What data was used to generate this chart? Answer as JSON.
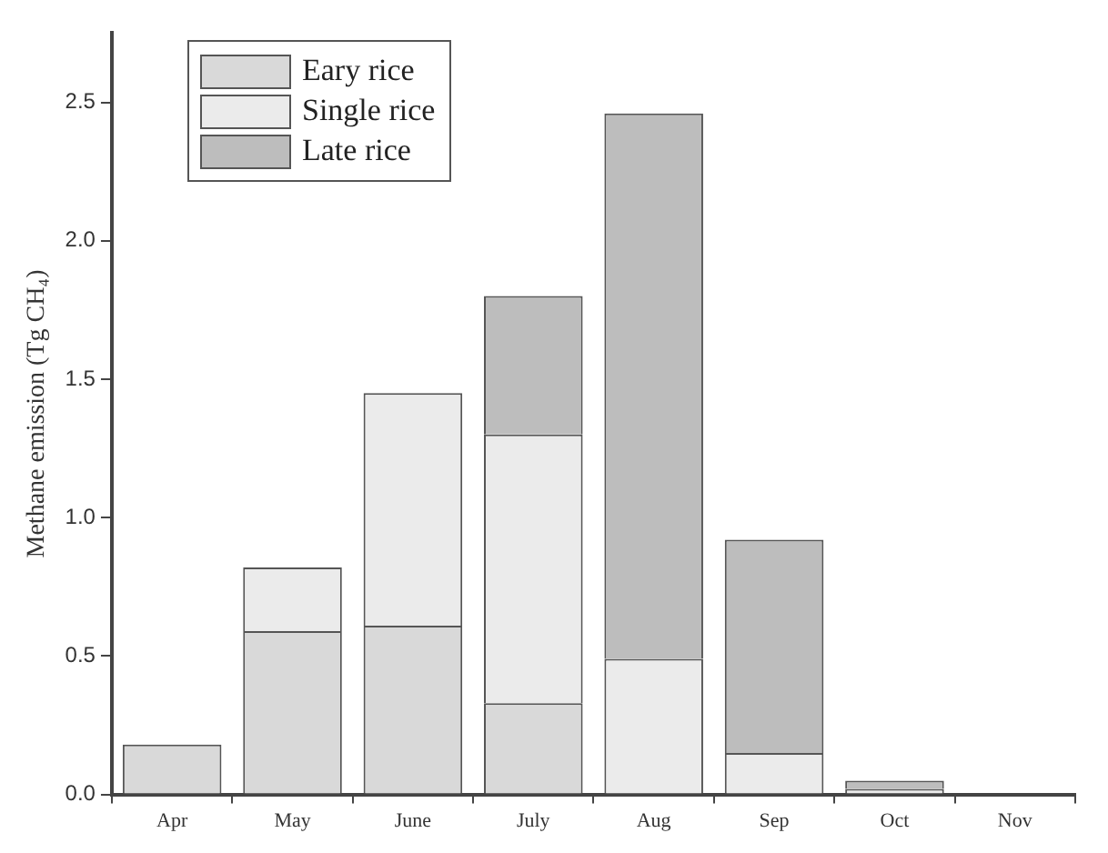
{
  "chart_data": {
    "type": "bar",
    "ylabel": "Methane emission (Tg CH₄)",
    "categories": [
      "Apr",
      "May",
      "June",
      "July",
      "Aug",
      "Sep",
      "Oct",
      "Nov"
    ],
    "stacked": true,
    "legend": "top left",
    "grid": false,
    "ylim": [
      0,
      2.75
    ],
    "yticks": [
      {
        "value": 0,
        "label": "0.0"
      },
      {
        "value": 0.5,
        "label": "0.5"
      },
      {
        "value": 1,
        "label": "1.0"
      },
      {
        "value": 1.5,
        "label": "1.5"
      },
      {
        "value": 2,
        "label": "2.0"
      },
      {
        "value": 2.5,
        "label": "2.5"
      }
    ],
    "series": [
      {
        "name": "Eary rice",
        "color": "#d9d9d9",
        "values": [
          0.18,
          0.59,
          0.61,
          0.33,
          0,
          0,
          0,
          0
        ]
      },
      {
        "name": "Single rice",
        "color": "#ebebeb",
        "values": [
          0,
          0.23,
          0.84,
          0.97,
          0.49,
          0.15,
          0.02,
          0
        ]
      },
      {
        "name": "Late rice",
        "color": "#bdbdbd",
        "values": [
          0,
          0,
          0,
          0.5,
          1.97,
          0.77,
          0.03,
          0
        ]
      }
    ]
  }
}
